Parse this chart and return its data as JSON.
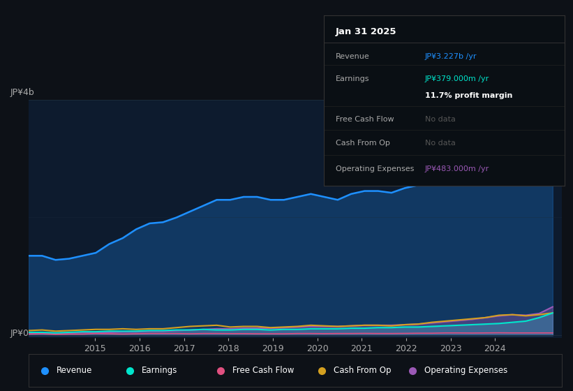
{
  "bg_color": "#0d1117",
  "chart_bg": "#0d1b2e",
  "title": "Jan 31 2025",
  "y_label_top": "JP¥4b",
  "y_label_bottom": "JP¥0",
  "x_ticks": [
    2015,
    2016,
    2017,
    2018,
    2019,
    2020,
    2021,
    2022,
    2023,
    2024
  ],
  "series_colors": {
    "Revenue": "#1e90ff",
    "Earnings": "#00e5cc",
    "Free Cash Flow": "#e05080",
    "Cash From Op": "#d4a020",
    "Operating Expenses": "#9b59b6"
  },
  "legend_labels": [
    "Revenue",
    "Earnings",
    "Free Cash Flow",
    "Cash From Op",
    "Operating Expenses"
  ],
  "tooltip": {
    "date": "Jan 31 2025",
    "Revenue": "JP¥3.227b /yr",
    "Earnings": "JP¥379.000m /yr",
    "profit_margin": "11.7% profit margin",
    "Free Cash Flow": "No data",
    "Cash From Op": "No data",
    "Operating Expenses": "JP¥483.000m /yr"
  },
  "revenue": [
    1.35,
    1.35,
    1.28,
    1.3,
    1.35,
    1.4,
    1.55,
    1.65,
    1.8,
    1.9,
    1.92,
    2.0,
    2.1,
    2.2,
    2.3,
    2.3,
    2.35,
    2.35,
    2.3,
    2.3,
    2.35,
    2.4,
    2.35,
    2.3,
    2.4,
    2.45,
    2.45,
    2.42,
    2.5,
    2.55,
    2.65,
    2.75,
    2.9,
    3.1,
    3.3,
    3.5,
    3.6,
    3.5,
    3.4,
    3.23
  ],
  "earnings": [
    0.05,
    0.05,
    0.04,
    0.05,
    0.06,
    0.06,
    0.07,
    0.07,
    0.07,
    0.08,
    0.08,
    0.09,
    0.09,
    0.1,
    0.09,
    0.09,
    0.1,
    0.1,
    0.09,
    0.1,
    0.1,
    0.11,
    0.11,
    0.11,
    0.12,
    0.12,
    0.13,
    0.13,
    0.14,
    0.14,
    0.15,
    0.16,
    0.17,
    0.18,
    0.19,
    0.2,
    0.22,
    0.24,
    0.3,
    0.379
  ],
  "free_cash_flow": [
    0.02,
    0.025,
    0.015,
    0.02,
    0.02,
    0.03,
    0.025,
    0.02,
    0.025,
    0.03,
    0.03,
    0.03,
    0.025,
    0.03,
    0.03,
    0.028,
    0.028,
    0.025,
    0.025,
    0.025,
    0.03,
    0.03,
    0.028,
    0.03,
    0.03,
    0.032,
    0.03,
    0.03,
    0.032,
    0.035,
    0.035,
    0.04,
    0.04,
    0.038,
    0.04,
    0.042,
    0.04,
    0.04,
    0.04,
    0.04
  ],
  "cash_from_op": [
    0.08,
    0.09,
    0.07,
    0.08,
    0.09,
    0.1,
    0.1,
    0.11,
    0.1,
    0.11,
    0.11,
    0.13,
    0.15,
    0.16,
    0.17,
    0.14,
    0.15,
    0.15,
    0.13,
    0.14,
    0.15,
    0.17,
    0.16,
    0.15,
    0.16,
    0.17,
    0.17,
    0.16,
    0.18,
    0.19,
    0.22,
    0.24,
    0.26,
    0.28,
    0.3,
    0.34,
    0.35,
    0.33,
    0.35,
    0.38
  ],
  "op_expenses": [
    0.04,
    0.04,
    0.04,
    0.04,
    0.05,
    0.05,
    0.05,
    0.06,
    0.06,
    0.07,
    0.07,
    0.08,
    0.09,
    0.1,
    0.11,
    0.11,
    0.12,
    0.12,
    0.12,
    0.13,
    0.14,
    0.15,
    0.15,
    0.15,
    0.16,
    0.17,
    0.17,
    0.17,
    0.18,
    0.19,
    0.21,
    0.23,
    0.25,
    0.27,
    0.3,
    0.33,
    0.35,
    0.34,
    0.37,
    0.483
  ],
  "tooltip_bg": "#0a0f14",
  "divider_color": "#333333",
  "nodata_color": "#555555",
  "grid_color": "#1a2a3a",
  "tick_color": "#aaaaaa",
  "legend_border_color": "#333333"
}
